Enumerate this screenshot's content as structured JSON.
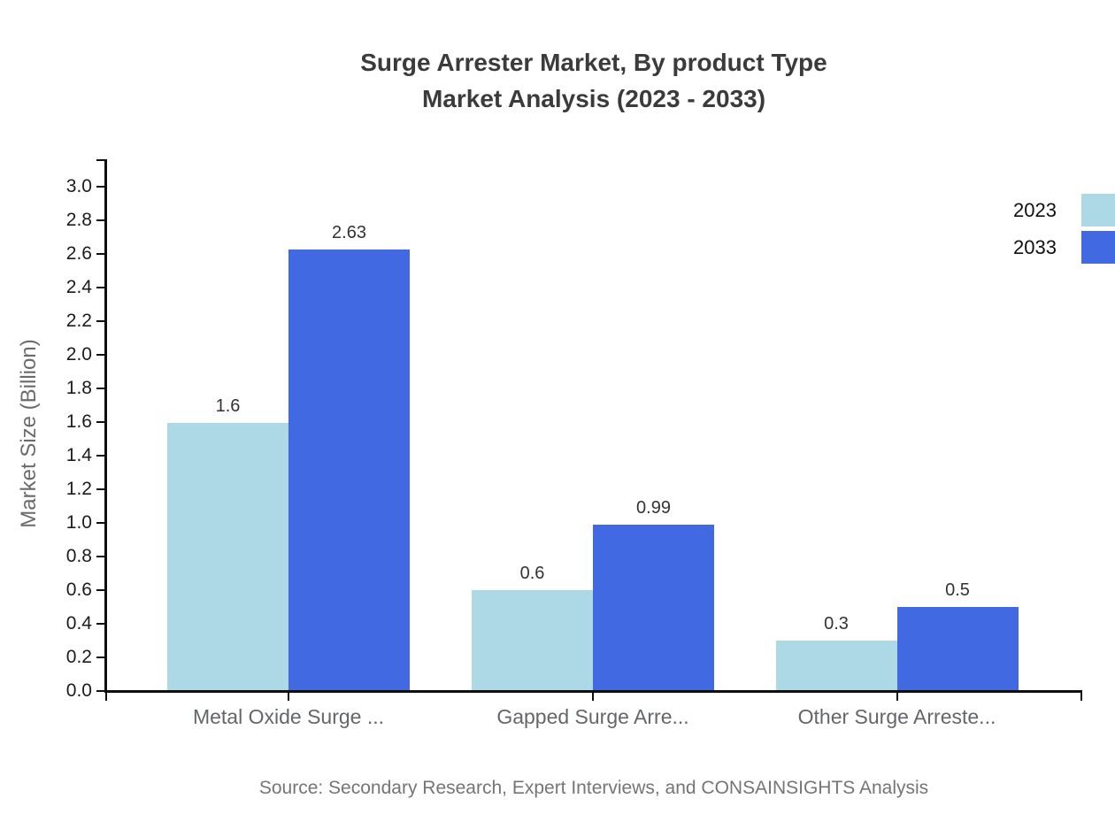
{
  "chart_data": {
    "type": "bar",
    "title_line1": "Surge Arrester Market, By product Type",
    "title_line2": "Market Analysis (2023 - 2033)",
    "ylabel": "Market Size (Billion)",
    "xlabel": "",
    "categories": [
      "Metal Oxide Surge ...",
      "Gapped Surge Arre...",
      "Other Surge Arreste..."
    ],
    "series": [
      {
        "name": "2023",
        "color": "#ADD8E6",
        "values": [
          1.6,
          0.6,
          0.3
        ]
      },
      {
        "name": "2033",
        "color": "#4169E1",
        "values": [
          2.63,
          0.99,
          0.5
        ]
      }
    ],
    "value_labels": [
      [
        "1.6",
        "0.6",
        "0.3"
      ],
      [
        "2.63",
        "0.99",
        "0.5"
      ]
    ],
    "ylim": [
      0.0,
      3.0
    ],
    "ytick_step": 0.2,
    "grid": false,
    "legend_position": "top-right",
    "source": "Source: Secondary Research, Expert Interviews, and CONSAINSIGHTS Analysis"
  }
}
